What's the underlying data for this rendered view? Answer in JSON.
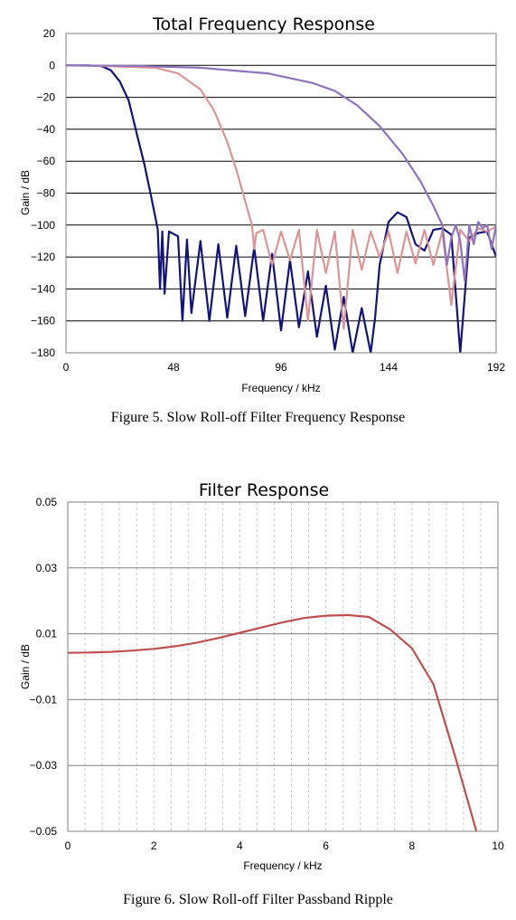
{
  "chart_data": [
    {
      "type": "line",
      "title": "Total Frequency Response",
      "xlabel": "Frequency / kHz",
      "ylabel": "Gain / dB",
      "xlim": [
        0,
        192
      ],
      "ylim": [
        -180,
        20
      ],
      "xticks": [
        0,
        48,
        96,
        144,
        192
      ],
      "yticks": [
        20,
        0,
        -20,
        -40,
        -60,
        -80,
        -100,
        -120,
        -140,
        -160,
        -180
      ],
      "grid": "horizontal",
      "legend": "none",
      "caption": "Figure 5. Slow Roll-off Filter Frequency Response",
      "series": [
        {
          "color": "#10137c",
          "x": [
            0,
            10,
            16,
            20,
            24,
            28,
            32,
            35,
            38,
            40,
            41,
            42,
            43,
            44,
            46,
            50,
            52,
            54,
            56,
            60,
            64,
            68,
            72,
            76,
            80,
            84,
            88,
            92,
            96,
            100,
            104,
            108,
            112,
            116,
            120,
            124,
            128,
            132,
            136,
            138,
            140,
            144,
            148,
            152,
            156,
            160,
            164,
            168,
            172,
            176,
            180,
            184,
            188,
            192
          ],
          "y": [
            0,
            0,
            -0.5,
            -3,
            -10,
            -22,
            -45,
            -62,
            -82,
            -96,
            -103,
            -140,
            -104,
            -143,
            -104,
            -107,
            -160,
            -109,
            -155,
            -110,
            -160,
            -112,
            -158,
            -113,
            -157,
            -114,
            -160,
            -118,
            -166,
            -122,
            -164,
            -129,
            -170,
            -138,
            -178,
            -145,
            -180,
            -152,
            -180,
            -158,
            -125,
            -98,
            -92,
            -95,
            -112,
            -116,
            -103,
            -102,
            -106,
            -180,
            -108,
            -105,
            -104,
            -120
          ]
        },
        {
          "color": "#dc9494",
          "x": [
            0,
            20,
            40,
            50,
            60,
            66,
            72,
            76,
            80,
            83,
            84,
            85,
            88,
            92,
            96,
            100,
            104,
            108,
            112,
            116,
            120,
            124,
            128,
            132,
            136,
            140,
            144,
            148,
            152,
            156,
            160,
            164,
            168,
            172,
            176,
            180,
            184,
            188,
            192
          ],
          "y": [
            0,
            -0.5,
            -1.5,
            -5,
            -15,
            -28,
            -48,
            -65,
            -85,
            -100,
            -115,
            -105,
            -103,
            -125,
            -104,
            -122,
            -103,
            -160,
            -103,
            -130,
            -104,
            -165,
            -103,
            -128,
            -104,
            -120,
            -104,
            -130,
            -104,
            -124,
            -103,
            -125,
            -104,
            -150,
            -103,
            -110,
            -102,
            -104,
            -101
          ]
        },
        {
          "color": "#8f73bc",
          "x": [
            0,
            30,
            60,
            90,
            110,
            120,
            130,
            140,
            150,
            158,
            164,
            168,
            170,
            172,
            174,
            176,
            178,
            180,
            182,
            184,
            186,
            188,
            190,
            192
          ],
          "y": [
            0,
            -0.3,
            -1.5,
            -5,
            -11,
            -16,
            -25,
            -38,
            -55,
            -72,
            -88,
            -100,
            -125,
            -108,
            -100,
            -110,
            -135,
            -100,
            -112,
            -98,
            -102,
            -100,
            -115,
            -100
          ]
        }
      ]
    },
    {
      "type": "line",
      "title": "Filter Response",
      "xlabel": "Frequency / kHz",
      "ylabel": "Gain / dB",
      "xlim": [
        0,
        10
      ],
      "ylim": [
        -0.05,
        0.05
      ],
      "xticks": [
        0,
        2,
        4,
        6,
        8,
        10
      ],
      "yticks": [
        0.05,
        0.03,
        0.01,
        -0.01,
        -0.03,
        -0.05
      ],
      "minor_xgrid_step": 0.4,
      "grid": "both",
      "legend": "none",
      "caption": "Figure 6. Slow Roll-off Filter Passband Ripple",
      "series": [
        {
          "color": "#c0504d",
          "x": [
            0,
            0.5,
            1,
            1.5,
            2,
            2.5,
            3,
            3.5,
            4,
            4.5,
            5,
            5.5,
            6,
            6.5,
            7,
            7.5,
            8,
            8.5,
            9,
            9.5
          ],
          "y": [
            0.0042,
            0.0043,
            0.0045,
            0.0049,
            0.0054,
            0.0062,
            0.0073,
            0.0087,
            0.0103,
            0.0119,
            0.0135,
            0.0148,
            0.0155,
            0.0157,
            0.0151,
            0.0113,
            0.0056,
            -0.0053,
            -0.027,
            -0.05
          ]
        }
      ]
    }
  ]
}
